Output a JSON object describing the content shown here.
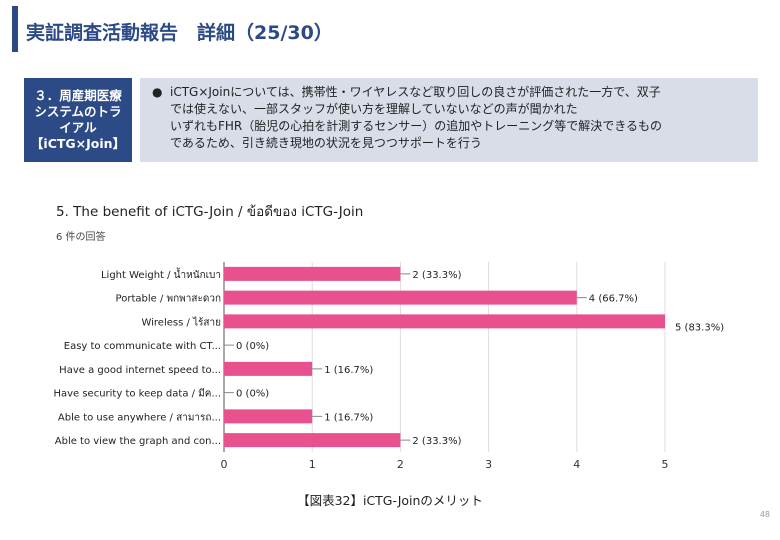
{
  "header": {
    "title": "実証調査活動報告　詳細（25/30）"
  },
  "section": {
    "label_lines": [
      "３．周産期医療",
      "システムのトラ",
      "イアル",
      "【iCTG×Join】"
    ]
  },
  "description": {
    "bullet": "●",
    "lines": [
      "iCTG×Joinについては、携帯性・ワイヤレスなど取り回しの良さが評価された一方で、双子",
      "では使えない、一部スタッフが使い方を理解していないなどの声が聞かれた",
      "いずれもFHR（胎児の心拍を計測するセンサー）の追加やトレーニング等で解決できるもの",
      "であるため、引き続き現地の状況を見つつサポートを行う"
    ]
  },
  "chart_data": {
    "type": "bar",
    "orientation": "horizontal",
    "title": "5. The benefit of iCTG-Join / ข้อดีของ iCTG-Join",
    "subtitle": "6 件の回答",
    "categories": [
      "Light Weight / น้ำหนักเบา",
      "Portable / พกพาสะดวก",
      "Wireless / ไร้สาย",
      "Easy to communicate with  CT...",
      "Have a good internet speed to...",
      "Have security to keep data / มีค...",
      "Able to use anywhere / สามารถ...",
      "Able to view the graph and con..."
    ],
    "values": [
      2,
      4,
      5,
      0,
      1,
      0,
      1,
      2
    ],
    "data_labels": [
      "2 (33.3%)",
      "4 (66.7%)",
      "5 (83.3%)",
      "0 (0%)",
      "1 (16.7%)",
      "0 (0%)",
      "1 (16.7%)",
      "2 (33.3%)"
    ],
    "xlim": [
      0,
      5
    ],
    "x_ticks": [
      "0",
      "1",
      "2",
      "3",
      "4",
      "5"
    ],
    "bar_color": "#e8508e",
    "grid": true
  },
  "caption": "【図表32】iCTG-Joinのメリット",
  "page_number": "48"
}
